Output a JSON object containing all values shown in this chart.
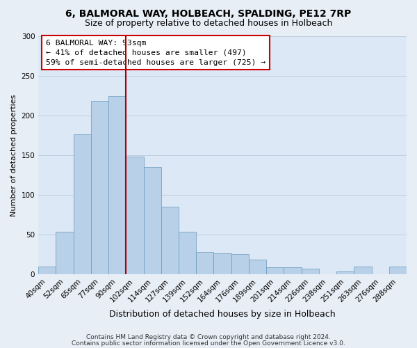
{
  "title": "6, BALMORAL WAY, HOLBEACH, SPALDING, PE12 7RP",
  "subtitle": "Size of property relative to detached houses in Holbeach",
  "xlabel": "Distribution of detached houses by size in Holbeach",
  "ylabel": "Number of detached properties",
  "bar_labels": [
    "40sqm",
    "52sqm",
    "65sqm",
    "77sqm",
    "90sqm",
    "102sqm",
    "114sqm",
    "127sqm",
    "139sqm",
    "152sqm",
    "164sqm",
    "176sqm",
    "189sqm",
    "201sqm",
    "214sqm",
    "226sqm",
    "238sqm",
    "251sqm",
    "263sqm",
    "276sqm",
    "288sqm"
  ],
  "bar_values": [
    10,
    54,
    176,
    218,
    224,
    148,
    135,
    85,
    54,
    28,
    27,
    26,
    19,
    9,
    9,
    7,
    0,
    4,
    10,
    0,
    10
  ],
  "bar_fill_color": "#b8d0e8",
  "bar_edge_color": "#6699bb",
  "highlight_line_color": "#aa0000",
  "highlight_line_index": 5,
  "ylim": [
    0,
    300
  ],
  "yticks": [
    0,
    50,
    100,
    150,
    200,
    250,
    300
  ],
  "annotation_title": "6 BALMORAL WAY: 93sqm",
  "annotation_line1": "← 41% of detached houses are smaller (497)",
  "annotation_line2": "59% of semi-detached houses are larger (725) →",
  "annotation_box_facecolor": "#ffffff",
  "annotation_box_edgecolor": "#cc0000",
  "footer_line1": "Contains HM Land Registry data © Crown copyright and database right 2024.",
  "footer_line2": "Contains public sector information licensed under the Open Government Licence v3.0.",
  "fig_facecolor": "#e8eef5",
  "plot_facecolor": "#dce8f5",
  "grid_color": "#c0cfe0",
  "title_fontsize": 10,
  "subtitle_fontsize": 9,
  "ylabel_fontsize": 8,
  "xlabel_fontsize": 9,
  "tick_fontsize": 7.5,
  "footer_fontsize": 6.5
}
